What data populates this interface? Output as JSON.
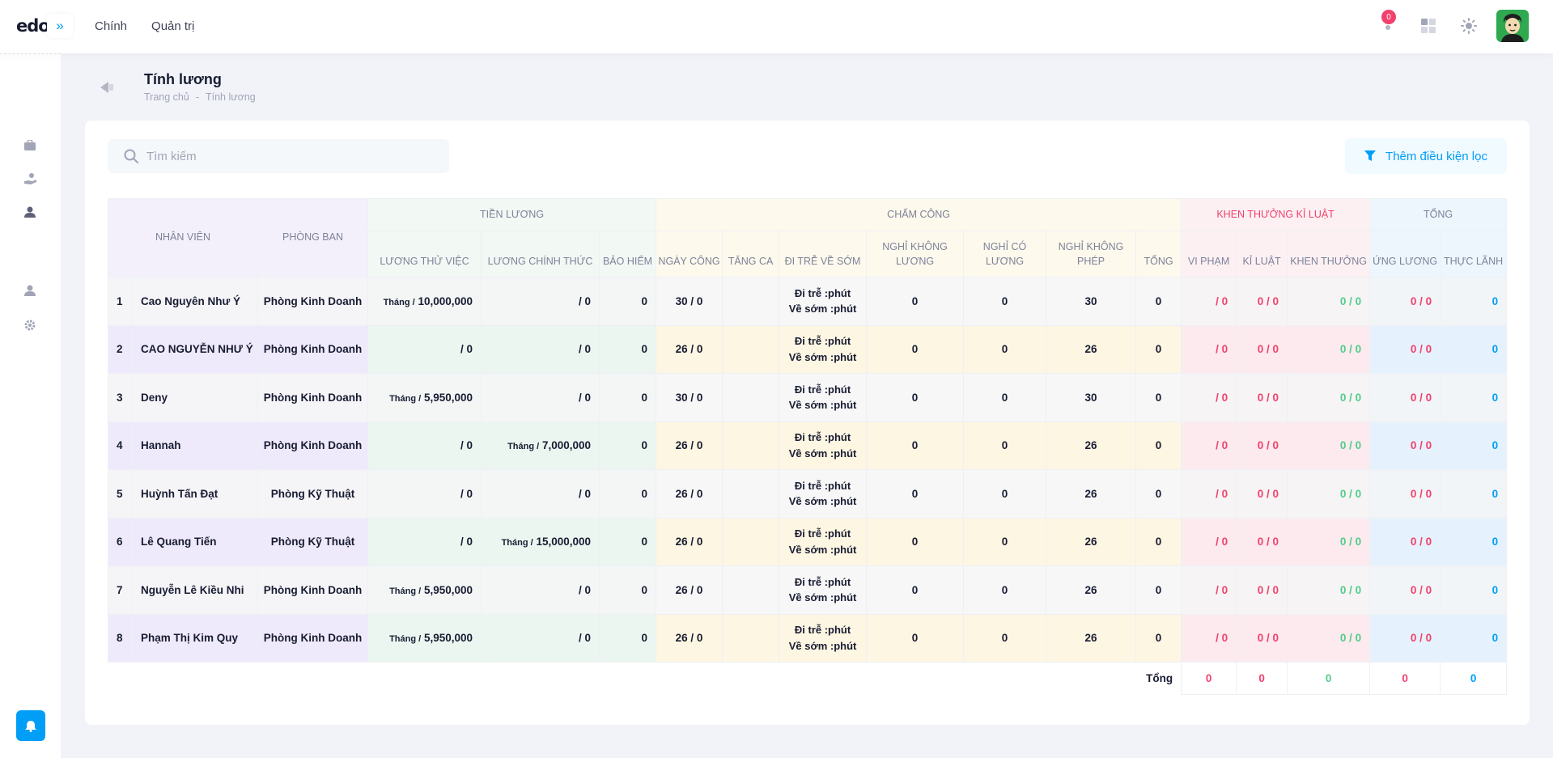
{
  "header": {
    "logo": "edo",
    "nav": [
      "Chính",
      "Quản trị"
    ],
    "notification_count": "0"
  },
  "toolbar": {
    "title": "Tính lương",
    "breadcrumb": [
      "Trang chủ",
      "-",
      "Tính lương"
    ]
  },
  "search": {
    "placeholder": "Tìm kiếm"
  },
  "filter": {
    "label": "Thêm điều kiện lọc"
  },
  "table": {
    "groups": {
      "nhan_vien": "NHÂN VIÊN",
      "phong_ban": "PHÒNG BAN",
      "tien_luong": "TIỀN LƯƠNG",
      "cham_cong": "CHẤM CÔNG",
      "khen_thuong": "KHEN THƯỞNG KỈ LUẬT",
      "tong": "TỔNG"
    },
    "sub": {
      "luong_thu_viec": "LƯƠNG THỬ VIỆC",
      "luong_chinh_thuc": "LƯƠNG CHÍNH THỨC",
      "bao_hiem": "BẢO HIỂM",
      "ngay_cong": "NGÀY CÔNG",
      "tang_ca": "TĂNG CA",
      "di_tre": "ĐI TRỄ VỀ SỚM",
      "nghi_khong_luong": "NGHỈ KHÔNG LƯƠNG",
      "nghi_co_luong": "NGHỈ CÓ LƯƠNG",
      "nghi_khong_phep": "NGHỈ KHÔNG PHÉP",
      "tong_cc": "TỔNG",
      "vi_pham": "VI PHẠM",
      "ki_luat": "KỈ LUẬT",
      "khen_thuong": "KHEN THƯỞNG",
      "ung_luong": "ỨNG LƯƠNG",
      "thuc_lanh": "THỰC LÃNH"
    },
    "rows": [
      {
        "no": "1",
        "name": "Cao Nguyên Như Ý",
        "dept": "Phòng Kinh Doanh",
        "tv_unit": "Tháng /",
        "tv": "10,000,000",
        "ct_unit": "",
        "ct": "/ 0",
        "bh": "0",
        "nc": "30 / 0",
        "tc": "",
        "late1": "Đi trễ :phút",
        "late2": "Về sớm :phút",
        "nkl": "0",
        "ncl": "0",
        "nkp": "30",
        "tcc": "0",
        "vp": "/ 0",
        "kl": "0 / 0",
        "kt": "0 / 0",
        "ul": "0 / 0",
        "thl": "0"
      },
      {
        "no": "2",
        "name": "CAO NGUYỄN NHƯ Ý",
        "dept": "Phòng Kinh Doanh",
        "tv_unit": "",
        "tv": "/ 0",
        "ct_unit": "",
        "ct": "/ 0",
        "bh": "0",
        "nc": "26 / 0",
        "tc": "",
        "late1": "Đi trễ :phút",
        "late2": "Về sớm :phút",
        "nkl": "0",
        "ncl": "0",
        "nkp": "26",
        "tcc": "0",
        "vp": "/ 0",
        "kl": "0 / 0",
        "kt": "0 / 0",
        "ul": "0 / 0",
        "thl": "0"
      },
      {
        "no": "3",
        "name": "Deny",
        "dept": "Phòng Kinh Doanh",
        "tv_unit": "Tháng /",
        "tv": "5,950,000",
        "ct_unit": "",
        "ct": "/ 0",
        "bh": "0",
        "nc": "30 / 0",
        "tc": "",
        "late1": "Đi trễ :phút",
        "late2": "Về sớm :phút",
        "nkl": "0",
        "ncl": "0",
        "nkp": "30",
        "tcc": "0",
        "vp": "/ 0",
        "kl": "0 / 0",
        "kt": "0 / 0",
        "ul": "0 / 0",
        "thl": "0"
      },
      {
        "no": "4",
        "name": "Hannah",
        "dept": "Phòng Kinh Doanh",
        "tv_unit": "",
        "tv": "/ 0",
        "ct_unit": "Tháng /",
        "ct": "7,000,000",
        "bh": "0",
        "nc": "26 / 0",
        "tc": "",
        "late1": "Đi trễ :phút",
        "late2": "Về sớm :phút",
        "nkl": "0",
        "ncl": "0",
        "nkp": "26",
        "tcc": "0",
        "vp": "/ 0",
        "kl": "0 / 0",
        "kt": "0 / 0",
        "ul": "0 / 0",
        "thl": "0"
      },
      {
        "no": "5",
        "name": "Huỳnh Tấn Đạt",
        "dept": "Phòng Kỹ Thuật",
        "tv_unit": "",
        "tv": "/ 0",
        "ct_unit": "",
        "ct": "/ 0",
        "bh": "0",
        "nc": "26 / 0",
        "tc": "",
        "late1": "Đi trễ :phút",
        "late2": "Về sớm :phút",
        "nkl": "0",
        "ncl": "0",
        "nkp": "26",
        "tcc": "0",
        "vp": "/ 0",
        "kl": "0 / 0",
        "kt": "0 / 0",
        "ul": "0 / 0",
        "thl": "0"
      },
      {
        "no": "6",
        "name": "Lê Quang Tiến",
        "dept": "Phòng Kỹ Thuật",
        "tv_unit": "",
        "tv": "/ 0",
        "ct_unit": "Tháng /",
        "ct": "15,000,000",
        "bh": "0",
        "nc": "26 / 0",
        "tc": "",
        "late1": "Đi trễ :phút",
        "late2": "Về sớm :phút",
        "nkl": "0",
        "ncl": "0",
        "nkp": "26",
        "tcc": "0",
        "vp": "/ 0",
        "kl": "0 / 0",
        "kt": "0 / 0",
        "ul": "0 / 0",
        "thl": "0"
      },
      {
        "no": "7",
        "name": "Nguyễn Lê Kiều Nhi",
        "dept": "Phòng Kinh Doanh",
        "tv_unit": "Tháng /",
        "tv": "5,950,000",
        "ct_unit": "",
        "ct": "/ 0",
        "bh": "0",
        "nc": "26 / 0",
        "tc": "",
        "late1": "Đi trễ :phút",
        "late2": "Về sớm :phút",
        "nkl": "0",
        "ncl": "0",
        "nkp": "26",
        "tcc": "0",
        "vp": "/ 0",
        "kl": "0 / 0",
        "kt": "0 / 0",
        "ul": "0 / 0",
        "thl": "0"
      },
      {
        "no": "8",
        "name": "Phạm Thị Kim Quy",
        "dept": "Phòng Kinh Doanh",
        "tv_unit": "Tháng /",
        "tv": "5,950,000",
        "ct_unit": "",
        "ct": "/ 0",
        "bh": "0",
        "nc": "26 / 0",
        "tc": "",
        "late1": "Đi trễ :phút",
        "late2": "Về sớm :phút",
        "nkl": "0",
        "ncl": "0",
        "nkp": "26",
        "tcc": "0",
        "vp": "/ 0",
        "kl": "0 / 0",
        "kt": "0 / 0",
        "ul": "0 / 0",
        "thl": "0"
      }
    ],
    "footer": {
      "label": "Tổng",
      "vp": "0",
      "kl": "0",
      "kt": "0",
      "ul": "0",
      "thl": "0"
    }
  },
  "colors": {
    "primary": "#009ef7",
    "danger": "#f1416c",
    "success": "#50cd89"
  }
}
